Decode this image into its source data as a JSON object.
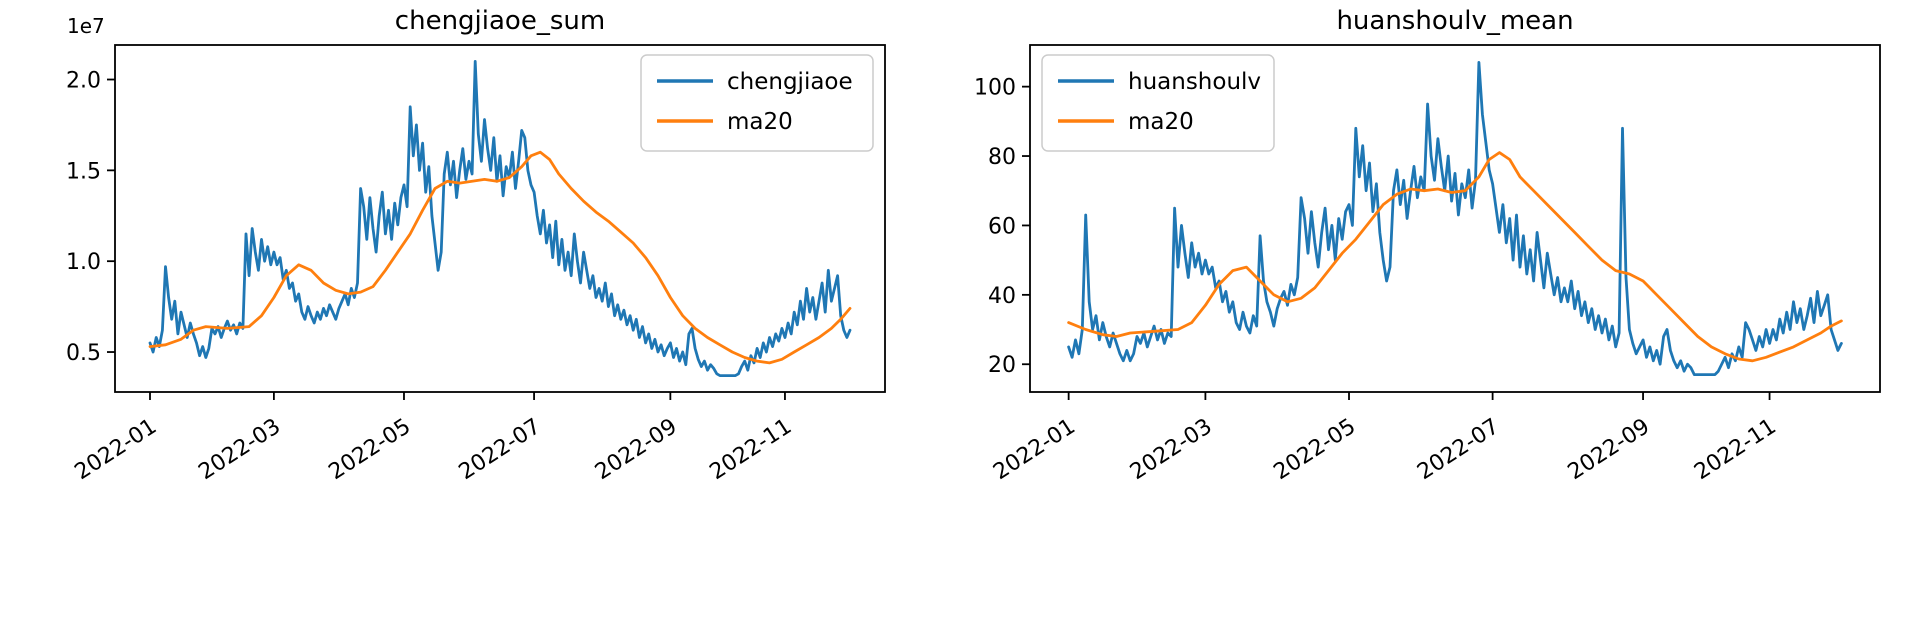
{
  "colors": {
    "blue": "#1f77b4",
    "orange": "#ff7f0e",
    "axis": "#000000",
    "text": "#000000",
    "legend_border": "#cccccc",
    "background": "#ffffff"
  },
  "chart_data": [
    {
      "type": "line",
      "title": "chengjiaoe_sum",
      "y_offset_label": "1e7",
      "n_points": 227,
      "ylim": [
        0.28,
        2.19
      ],
      "y_ticks": [
        {
          "value": 0.5,
          "label": "0.5"
        },
        {
          "value": 1.0,
          "label": "1.0"
        },
        {
          "value": 1.5,
          "label": "1.5"
        },
        {
          "value": 2.0,
          "label": "2.0"
        }
      ],
      "x_ticks": [
        {
          "index": 0,
          "label": "2022-01"
        },
        {
          "index": 40,
          "label": "2022-03"
        },
        {
          "index": 82,
          "label": "2022-05"
        },
        {
          "index": 124,
          "label": "2022-07"
        },
        {
          "index": 168,
          "label": "2022-09"
        },
        {
          "index": 205,
          "label": "2022-11"
        }
      ],
      "legend": {
        "position": "upper-right",
        "entries": [
          {
            "label": "chengjiaoe",
            "color": "blue"
          },
          {
            "label": "ma20",
            "color": "orange"
          }
        ]
      },
      "series": [
        {
          "name": "chengjiaoe",
          "color": "blue",
          "values": [
            0.55,
            0.5,
            0.58,
            0.53,
            0.62,
            0.97,
            0.8,
            0.68,
            0.78,
            0.6,
            0.72,
            0.65,
            0.58,
            0.66,
            0.6,
            0.55,
            0.48,
            0.53,
            0.47,
            0.52,
            0.63,
            0.6,
            0.64,
            0.58,
            0.63,
            0.67,
            0.62,
            0.65,
            0.6,
            0.66,
            0.63,
            1.15,
            0.92,
            1.18,
            1.05,
            0.95,
            1.12,
            1.0,
            1.08,
            0.98,
            1.05,
            0.98,
            1.02,
            0.9,
            0.95,
            0.85,
            0.88,
            0.78,
            0.82,
            0.72,
            0.68,
            0.75,
            0.7,
            0.66,
            0.72,
            0.68,
            0.74,
            0.7,
            0.76,
            0.72,
            0.68,
            0.74,
            0.78,
            0.82,
            0.76,
            0.85,
            0.8,
            0.88,
            1.4,
            1.3,
            1.12,
            1.35,
            1.18,
            1.05,
            1.25,
            1.38,
            1.15,
            1.28,
            1.12,
            1.32,
            1.2,
            1.35,
            1.42,
            1.3,
            1.85,
            1.58,
            1.75,
            1.5,
            1.65,
            1.38,
            1.52,
            1.25,
            1.1,
            0.95,
            1.05,
            1.48,
            1.6,
            1.42,
            1.55,
            1.35,
            1.5,
            1.62,
            1.45,
            1.55,
            1.48,
            2.1,
            1.7,
            1.55,
            1.78,
            1.62,
            1.5,
            1.68,
            1.44,
            1.58,
            1.36,
            1.52,
            1.46,
            1.6,
            1.4,
            1.55,
            1.72,
            1.68,
            1.5,
            1.42,
            1.38,
            1.25,
            1.15,
            1.28,
            1.1,
            1.2,
            1.02,
            1.22,
            0.98,
            1.12,
            0.95,
            1.05,
            0.92,
            1.15,
            1.0,
            0.88,
            1.05,
            0.95,
            0.85,
            0.92,
            0.8,
            0.85,
            0.78,
            0.88,
            0.75,
            0.82,
            0.7,
            0.76,
            0.68,
            0.73,
            0.65,
            0.7,
            0.62,
            0.68,
            0.58,
            0.64,
            0.55,
            0.6,
            0.52,
            0.57,
            0.5,
            0.54,
            0.48,
            0.52,
            0.55,
            0.47,
            0.52,
            0.45,
            0.5,
            0.43,
            0.6,
            0.63,
            0.52,
            0.46,
            0.42,
            0.45,
            0.4,
            0.43,
            0.41,
            0.38,
            0.37,
            0.37,
            0.37,
            0.37,
            0.37,
            0.37,
            0.38,
            0.42,
            0.45,
            0.4,
            0.48,
            0.44,
            0.52,
            0.47,
            0.55,
            0.5,
            0.58,
            0.53,
            0.6,
            0.56,
            0.63,
            0.58,
            0.66,
            0.6,
            0.72,
            0.65,
            0.78,
            0.68,
            0.85,
            0.72,
            0.8,
            0.68,
            0.78,
            0.88,
            0.72,
            0.95,
            0.78,
            0.85,
            0.92,
            0.7,
            0.62,
            0.58,
            0.62
          ]
        },
        {
          "name": "ma20",
          "color": "orange",
          "points": [
            [
              0,
              0.53
            ],
            [
              5,
              0.54
            ],
            [
              10,
              0.57
            ],
            [
              14,
              0.62
            ],
            [
              18,
              0.64
            ],
            [
              25,
              0.63
            ],
            [
              32,
              0.64
            ],
            [
              36,
              0.7
            ],
            [
              40,
              0.8
            ],
            [
              44,
              0.92
            ],
            [
              48,
              0.98
            ],
            [
              52,
              0.95
            ],
            [
              56,
              0.88
            ],
            [
              60,
              0.84
            ],
            [
              64,
              0.82
            ],
            [
              68,
              0.83
            ],
            [
              72,
              0.86
            ],
            [
              76,
              0.95
            ],
            [
              80,
              1.05
            ],
            [
              84,
              1.15
            ],
            [
              88,
              1.28
            ],
            [
              92,
              1.4
            ],
            [
              96,
              1.44
            ],
            [
              100,
              1.43
            ],
            [
              104,
              1.44
            ],
            [
              108,
              1.45
            ],
            [
              112,
              1.44
            ],
            [
              116,
              1.46
            ],
            [
              120,
              1.52
            ],
            [
              123,
              1.58
            ],
            [
              126,
              1.6
            ],
            [
              129,
              1.56
            ],
            [
              132,
              1.48
            ],
            [
              136,
              1.4
            ],
            [
              140,
              1.33
            ],
            [
              144,
              1.27
            ],
            [
              148,
              1.22
            ],
            [
              152,
              1.16
            ],
            [
              156,
              1.1
            ],
            [
              160,
              1.02
            ],
            [
              164,
              0.92
            ],
            [
              168,
              0.8
            ],
            [
              172,
              0.7
            ],
            [
              176,
              0.63
            ],
            [
              180,
              0.58
            ],
            [
              184,
              0.54
            ],
            [
              188,
              0.5
            ],
            [
              192,
              0.47
            ],
            [
              196,
              0.45
            ],
            [
              200,
              0.44
            ],
            [
              204,
              0.46
            ],
            [
              208,
              0.5
            ],
            [
              212,
              0.54
            ],
            [
              216,
              0.58
            ],
            [
              220,
              0.63
            ],
            [
              223,
              0.68
            ],
            [
              226,
              0.74
            ]
          ]
        }
      ]
    },
    {
      "type": "line",
      "title": "huanshoulv_mean",
      "n_points": 227,
      "ylim": [
        12,
        112
      ],
      "y_ticks": [
        {
          "value": 20,
          "label": "20"
        },
        {
          "value": 40,
          "label": "40"
        },
        {
          "value": 60,
          "label": "60"
        },
        {
          "value": 80,
          "label": "80"
        },
        {
          "value": 100,
          "label": "100"
        }
      ],
      "x_ticks": [
        {
          "index": 0,
          "label": "2022-01"
        },
        {
          "index": 40,
          "label": "2022-03"
        },
        {
          "index": 82,
          "label": "2022-05"
        },
        {
          "index": 124,
          "label": "2022-07"
        },
        {
          "index": 168,
          "label": "2022-09"
        },
        {
          "index": 205,
          "label": "2022-11"
        }
      ],
      "legend": {
        "position": "upper-left",
        "entries": [
          {
            "label": "huanshoulv",
            "color": "blue"
          },
          {
            "label": "ma20",
            "color": "orange"
          }
        ]
      },
      "series": [
        {
          "name": "huanshoulv",
          "color": "blue",
          "values": [
            25,
            22,
            27,
            23,
            30,
            63,
            38,
            30,
            34,
            27,
            32,
            28,
            25,
            29,
            26,
            23,
            21,
            24,
            21,
            23,
            28,
            26,
            29,
            25,
            28,
            31,
            27,
            30,
            26,
            29,
            28,
            65,
            48,
            60,
            52,
            45,
            55,
            48,
            52,
            46,
            50,
            46,
            48,
            42,
            44,
            38,
            41,
            35,
            38,
            32,
            30,
            35,
            31,
            29,
            34,
            31,
            57,
            44,
            38,
            35,
            31,
            36,
            39,
            41,
            37,
            43,
            40,
            45,
            68,
            62,
            52,
            64,
            55,
            48,
            58,
            65,
            53,
            60,
            50,
            62,
            56,
            64,
            66,
            60,
            88,
            74,
            83,
            70,
            78,
            64,
            72,
            58,
            50,
            44,
            48,
            70,
            76,
            66,
            73,
            62,
            70,
            77,
            68,
            74,
            70,
            95,
            80,
            73,
            85,
            77,
            70,
            80,
            67,
            75,
            63,
            72,
            68,
            76,
            65,
            73,
            107,
            92,
            84,
            76,
            72,
            65,
            58,
            66,
            55,
            62,
            50,
            63,
            48,
            57,
            46,
            53,
            44,
            58,
            50,
            42,
            52,
            46,
            40,
            45,
            38,
            42,
            38,
            44,
            36,
            41,
            34,
            38,
            32,
            36,
            30,
            34,
            29,
            33,
            27,
            31,
            25,
            29,
            88,
            45,
            30,
            26,
            23,
            25,
            27,
            22,
            25,
            21,
            24,
            20,
            28,
            30,
            24,
            21,
            19,
            21,
            18,
            20,
            19,
            17,
            17,
            17,
            17,
            17,
            17,
            17,
            18,
            20,
            22,
            19,
            23,
            21,
            25,
            22,
            32,
            30,
            27,
            24,
            28,
            25,
            30,
            26,
            30,
            27,
            33,
            29,
            35,
            30,
            38,
            32,
            36,
            30,
            34,
            39,
            32,
            41,
            34,
            37,
            40,
            30,
            27,
            24,
            26
          ]
        },
        {
          "name": "ma20",
          "color": "orange",
          "points": [
            [
              0,
              32
            ],
            [
              5,
              30
            ],
            [
              10,
              28.5
            ],
            [
              14,
              28
            ],
            [
              18,
              29
            ],
            [
              25,
              29.5
            ],
            [
              32,
              30
            ],
            [
              36,
              32
            ],
            [
              40,
              37
            ],
            [
              44,
              43
            ],
            [
              48,
              47
            ],
            [
              52,
              48
            ],
            [
              56,
              44
            ],
            [
              60,
              40
            ],
            [
              64,
              38
            ],
            [
              68,
              39
            ],
            [
              72,
              42
            ],
            [
              76,
              47
            ],
            [
              80,
              52
            ],
            [
              84,
              56
            ],
            [
              88,
              61
            ],
            [
              92,
              66
            ],
            [
              96,
              69
            ],
            [
              100,
              70.5
            ],
            [
              104,
              70
            ],
            [
              108,
              70.5
            ],
            [
              112,
              69.5
            ],
            [
              116,
              70
            ],
            [
              120,
              74
            ],
            [
              123,
              79
            ],
            [
              126,
              81
            ],
            [
              129,
              79
            ],
            [
              132,
              74
            ],
            [
              136,
              70
            ],
            [
              140,
              66
            ],
            [
              144,
              62
            ],
            [
              148,
              58
            ],
            [
              152,
              54
            ],
            [
              156,
              50
            ],
            [
              160,
              47
            ],
            [
              164,
              46
            ],
            [
              168,
              44
            ],
            [
              172,
              40
            ],
            [
              176,
              36
            ],
            [
              180,
              32
            ],
            [
              184,
              28
            ],
            [
              188,
              25
            ],
            [
              192,
              23
            ],
            [
              196,
              21.5
            ],
            [
              200,
              21
            ],
            [
              204,
              22
            ],
            [
              208,
              23.5
            ],
            [
              212,
              25
            ],
            [
              216,
              27
            ],
            [
              220,
              29
            ],
            [
              223,
              31
            ],
            [
              226,
              32.5
            ]
          ]
        }
      ]
    }
  ]
}
